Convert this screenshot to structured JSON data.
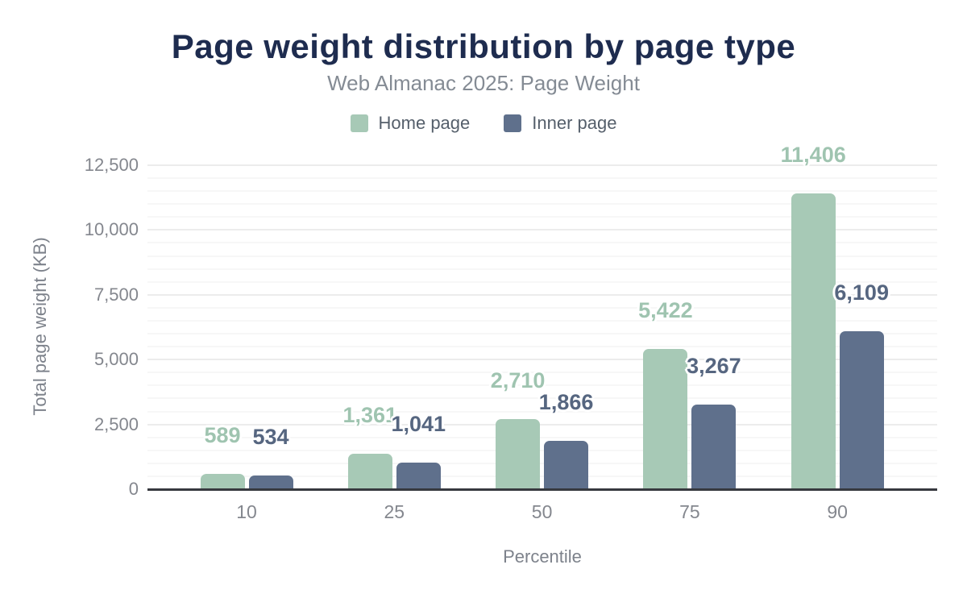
{
  "title": "Page weight distribution by page type",
  "subtitle": "Web Almanac 2025: Page Weight",
  "legend": {
    "items": [
      {
        "label": "Home page",
        "color": "#a7c9b6"
      },
      {
        "label": "Inner page",
        "color": "#5f708c"
      }
    ]
  },
  "chart_data": {
    "type": "bar",
    "categories": [
      "10",
      "25",
      "50",
      "75",
      "90"
    ],
    "series": [
      {
        "name": "Home page",
        "color": "#a7c9b6",
        "label_color": "#9fc4b0",
        "values": [
          589,
          1361,
          2710,
          5422,
          11406
        ]
      },
      {
        "name": "Inner page",
        "color": "#5f708c",
        "label_color": "#566680",
        "values": [
          534,
          1041,
          1866,
          3267,
          6109
        ]
      }
    ],
    "title": "Page weight distribution by page type",
    "subtitle": "Web Almanac 2025: Page Weight",
    "xlabel": "Percentile",
    "ylabel": "Total page weight (KB)",
    "ylim": [
      0,
      12500
    ],
    "y_ticks": [
      0,
      2500,
      5000,
      7500,
      10000,
      12500
    ],
    "minor_tick_interval": 500,
    "grid": true,
    "legend_position": "top",
    "data_labels": true,
    "axis_text_color": "#84878e",
    "gridline_major_color": "#ececec",
    "gridline_minor_color": "#f7f7f7",
    "axis_line_color": "#37393f",
    "title_color": "#1e2c4f",
    "subtitle_color": "#848b94"
  }
}
